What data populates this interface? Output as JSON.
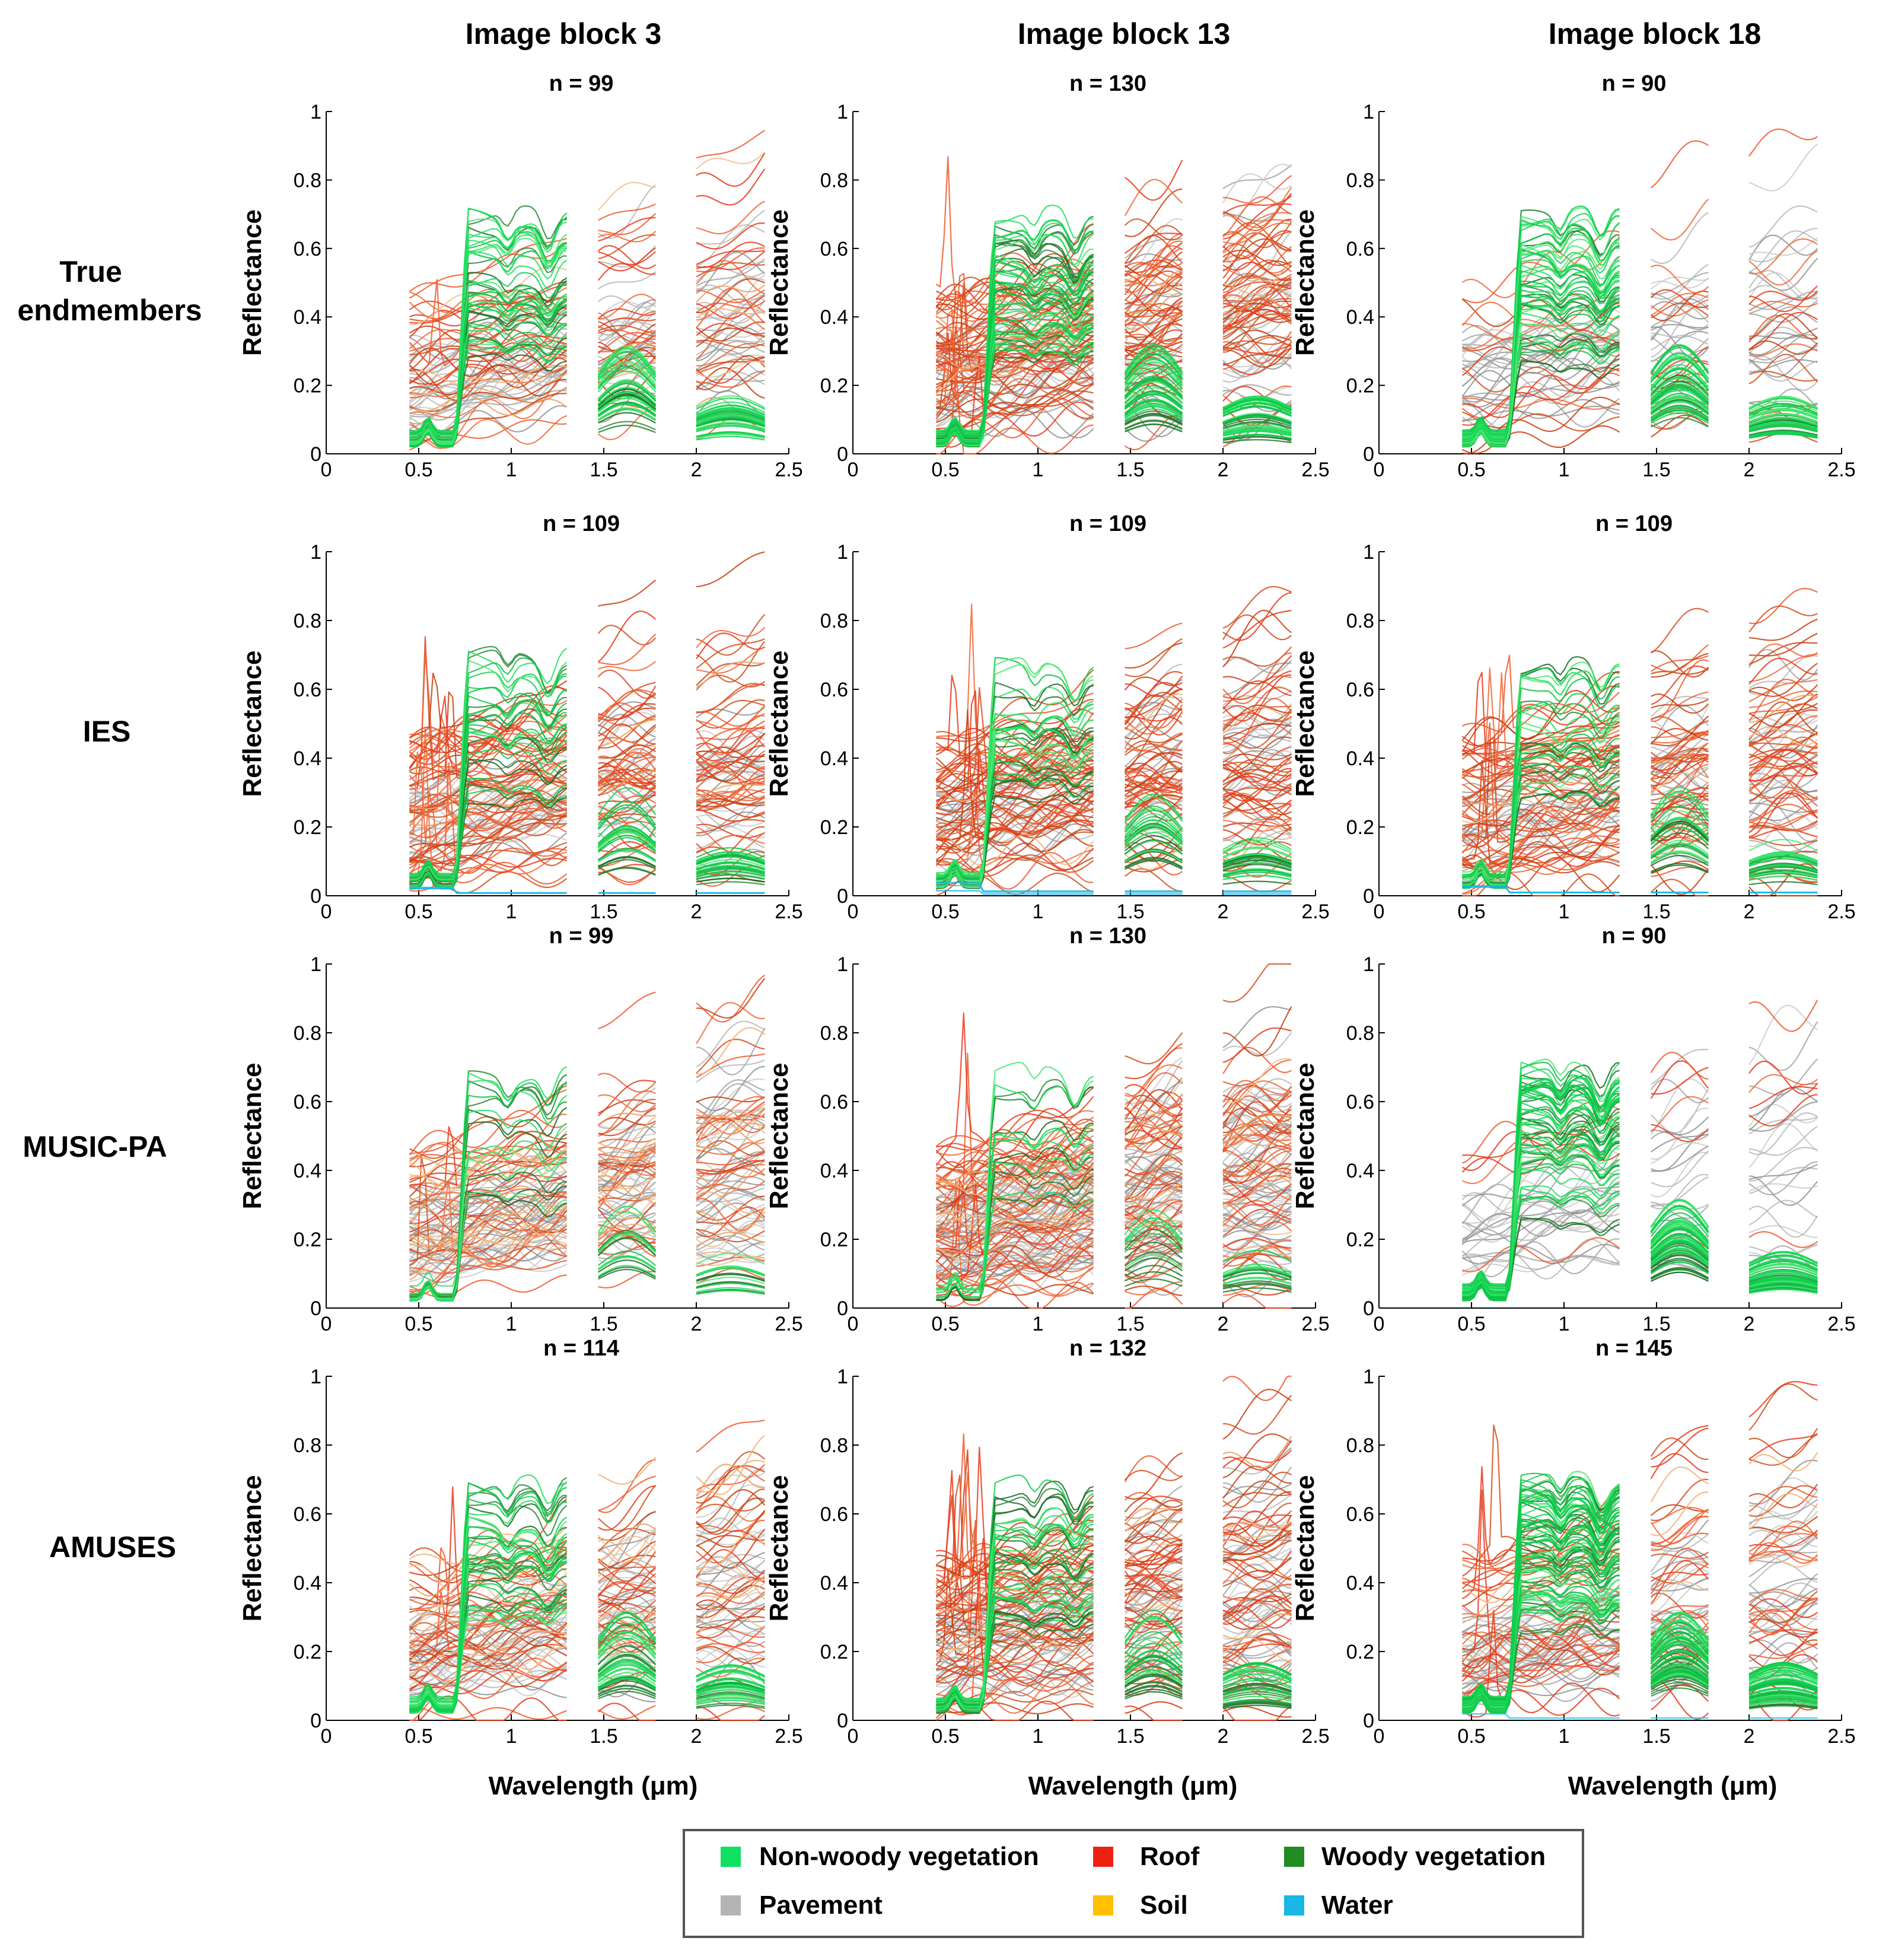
{
  "chart_data": {
    "type": "line",
    "column_headers": [
      "Image block 3",
      "Image block 13",
      "Image block 18"
    ],
    "row_labels": [
      [
        "True",
        "endmembers"
      ],
      [
        "IES"
      ],
      [
        "MUSIC-PA"
      ],
      [
        "AMUSES"
      ]
    ],
    "xlabel": "Wavelength (μm)",
    "ylabel": "Reflectance",
    "xlim": [
      0,
      2.5
    ],
    "ylim": [
      0,
      1
    ],
    "xticks": [
      "0",
      "0.5",
      "1",
      "1.5",
      "2",
      "2.5"
    ],
    "yticks": [
      "0",
      "0.2",
      "0.4",
      "0.6",
      "0.8",
      "1"
    ],
    "spectral_segments": [
      [
        0.45,
        1.3
      ],
      [
        1.47,
        1.78
      ],
      [
        2.0,
        2.37
      ]
    ],
    "n_values": [
      [
        "n = 99",
        "n = 130",
        "n = 90"
      ],
      [
        "n = 109",
        "n = 109",
        "n = 109"
      ],
      [
        "n = 99",
        "n = 130",
        "n = 90"
      ],
      [
        "n = 114",
        "n = 132",
        "n = 145"
      ]
    ],
    "n_counts": [
      [
        99,
        130,
        90
      ],
      [
        109,
        109,
        109
      ],
      [
        99,
        130,
        90
      ],
      [
        114,
        132,
        145
      ]
    ],
    "class_mix": [
      [
        {
          "veg": 0.3,
          "woody": 0.12,
          "pave": 0.28,
          "roof": 0.3,
          "soil": 0.05,
          "water": 0.0
        },
        {
          "veg": 0.28,
          "woody": 0.1,
          "pave": 0.22,
          "roof": 0.45,
          "soil": 0.02,
          "water": 0.0
        },
        {
          "veg": 0.42,
          "woody": 0.15,
          "pave": 0.3,
          "roof": 0.18,
          "soil": 0.0,
          "water": 0.0
        }
      ],
      [
        {
          "veg": 0.16,
          "woody": 0.1,
          "pave": 0.22,
          "roof": 0.5,
          "soil": 0.02,
          "water": 0.03
        },
        {
          "veg": 0.16,
          "woody": 0.1,
          "pave": 0.22,
          "roof": 0.5,
          "soil": 0.02,
          "water": 0.03
        },
        {
          "veg": 0.16,
          "woody": 0.1,
          "pave": 0.22,
          "roof": 0.5,
          "soil": 0.02,
          "water": 0.03
        }
      ],
      [
        {
          "veg": 0.08,
          "woody": 0.08,
          "pave": 0.4,
          "roof": 0.3,
          "soil": 0.14,
          "water": 0.0
        },
        {
          "veg": 0.05,
          "woody": 0.05,
          "pave": 0.45,
          "roof": 0.38,
          "soil": 0.07,
          "water": 0.0
        },
        {
          "veg": 0.45,
          "woody": 0.2,
          "pave": 0.28,
          "roof": 0.07,
          "soil": 0.0,
          "water": 0.0
        }
      ],
      [
        {
          "veg": 0.2,
          "woody": 0.12,
          "pave": 0.3,
          "roof": 0.3,
          "soil": 0.08,
          "water": 0.0
        },
        {
          "veg": 0.14,
          "woody": 0.12,
          "pave": 0.3,
          "roof": 0.4,
          "soil": 0.04,
          "water": 0.0
        },
        {
          "veg": 0.38,
          "woody": 0.15,
          "pave": 0.22,
          "roof": 0.22,
          "soil": 0.02,
          "water": 0.01
        }
      ]
    ],
    "legend": [
      {
        "label": "Non-woody vegetation",
        "color": "#10e060"
      },
      {
        "label": "Roof",
        "color": "#ee2211"
      },
      {
        "label": "Woody vegetation",
        "color": "#228b22"
      },
      {
        "label": "Pavement",
        "color": "#b4b4b4"
      },
      {
        "label": "Soil",
        "color": "#ffc000"
      },
      {
        "label": "Water",
        "color": "#19b6e6"
      }
    ],
    "line_colors": {
      "veg": [
        "#10d050",
        "#22e060",
        "#4ce870",
        "#0fbf45"
      ],
      "woody": [
        "#1d7a2a",
        "#2e8b3a",
        "#1a6b24"
      ],
      "pave": [
        "#9a9a9a",
        "#b0b0b0",
        "#c6c6c6",
        "#858585"
      ],
      "roof": [
        "#e83a1c",
        "#d4501f",
        "#f06a3a",
        "#c84010",
        "#ee5a30"
      ],
      "soil": [
        "#f5b078",
        "#f0c090",
        "#eaa060"
      ],
      "water": [
        "#19b6e6",
        "#2ec0e8"
      ]
    }
  }
}
